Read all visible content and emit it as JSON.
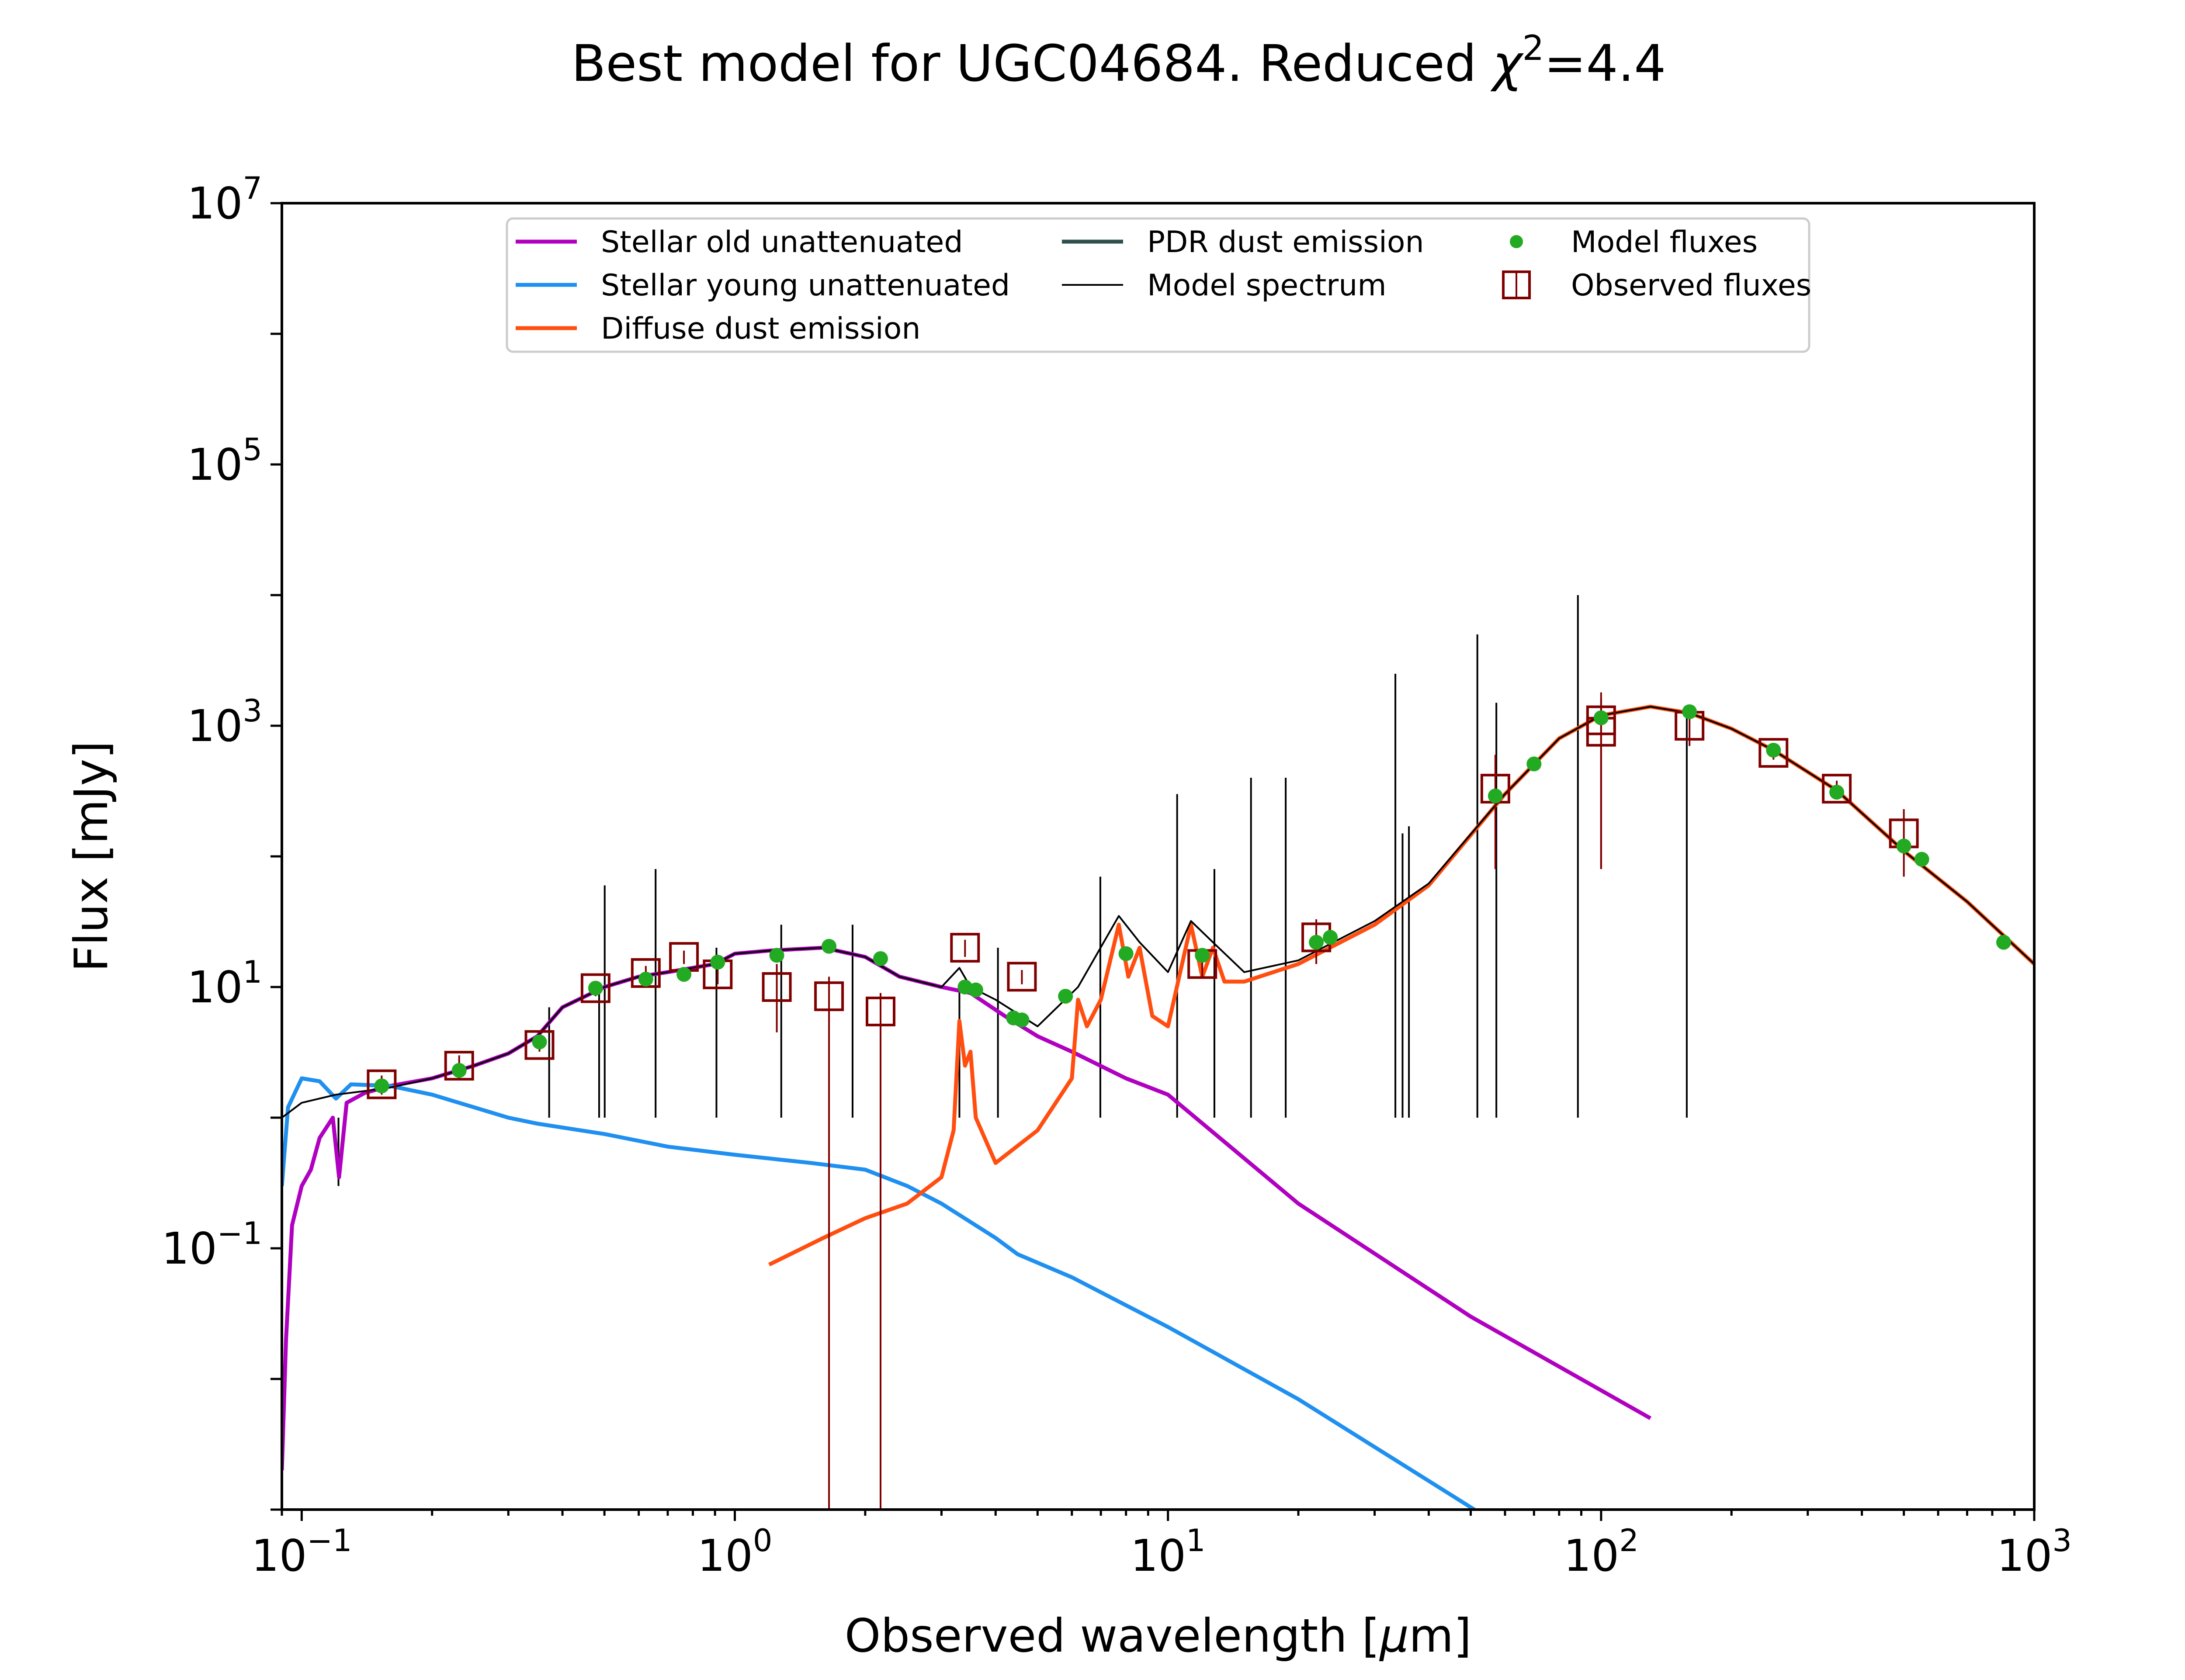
{
  "chart_data": {
    "type": "line",
    "title_main": "Best model for UGC04684. Reduced ",
    "title_chi": "χ",
    "title_sup": "2",
    "title_tail": "=4.4",
    "xlabel_main": "Observed wavelength [",
    "xlabel_mu": "μ",
    "xlabel_tail": "m]",
    "ylabel": "Flux [mJy]",
    "x_scale": "log",
    "y_scale": "log",
    "xlim": [
      0.09,
      1000
    ],
    "ylim": [
      0.001,
      10000000
    ],
    "grid": false,
    "legend_placement": "top-center",
    "x_ticks": [
      {
        "value": 0.1,
        "base": "10",
        "exp": "−1"
      },
      {
        "value": 1,
        "base": "10",
        "exp": "0"
      },
      {
        "value": 10,
        "base": "10",
        "exp": "1"
      },
      {
        "value": 100,
        "base": "10",
        "exp": "2"
      },
      {
        "value": 1000,
        "base": "10",
        "exp": "3"
      }
    ],
    "y_ticks": [
      {
        "value": 0.1,
        "base": "10",
        "exp": "−1"
      },
      {
        "value": 10,
        "base": "10",
        "exp": "1"
      },
      {
        "value": 1000,
        "base": "10",
        "exp": "3"
      },
      {
        "value": 100000,
        "base": "10",
        "exp": "5"
      },
      {
        "value": 10000000,
        "base": "10",
        "exp": "7"
      }
    ],
    "legend": [
      {
        "label": "Stellar old unattenuated",
        "kind": "line",
        "color": "#b000c0"
      },
      {
        "label": "Stellar young unattenuated",
        "kind": "line",
        "color": "#2090f0"
      },
      {
        "label": "Diffuse dust emission",
        "kind": "line",
        "color": "#ff4e10"
      },
      {
        "label": "PDR dust emission",
        "kind": "line",
        "color": "#2f4f4f"
      },
      {
        "label": "Model spectrum",
        "kind": "thin",
        "color": "#000000"
      },
      {
        "label": "Model fluxes",
        "kind": "dot",
        "color": "#22aa22"
      },
      {
        "label": "Observed fluxes",
        "kind": "square",
        "color": "#800000"
      }
    ],
    "series": [
      {
        "name": "Stellar old unattenuated",
        "color": "#b000c0",
        "points": [
          [
            0.09,
            0.002
          ],
          [
            0.092,
            0.02
          ],
          [
            0.095,
            0.15
          ],
          [
            0.1,
            0.3
          ],
          [
            0.105,
            0.4
          ],
          [
            0.11,
            0.7
          ],
          [
            0.118,
            1.0
          ],
          [
            0.122,
            0.35
          ],
          [
            0.127,
            1.3
          ],
          [
            0.14,
            1.55
          ],
          [
            0.16,
            1.75
          ],
          [
            0.2,
            2.0
          ],
          [
            0.25,
            2.5
          ],
          [
            0.3,
            3.1
          ],
          [
            0.35,
            4.2
          ],
          [
            0.4,
            7
          ],
          [
            0.5,
            10
          ],
          [
            0.6,
            12
          ],
          [
            0.7,
            13
          ],
          [
            0.9,
            15
          ],
          [
            1.0,
            18
          ],
          [
            1.2,
            19
          ],
          [
            1.6,
            20
          ],
          [
            2.0,
            17
          ],
          [
            2.4,
            12
          ],
          [
            3.0,
            10
          ],
          [
            3.5,
            9
          ],
          [
            4.2,
            6
          ],
          [
            5.0,
            4.2
          ],
          [
            6.0,
            3.2
          ],
          [
            8.0,
            2
          ],
          [
            10.0,
            1.5
          ],
          [
            20.0,
            0.22
          ],
          [
            50.0,
            0.03
          ],
          [
            130.0,
            0.005
          ]
        ]
      },
      {
        "name": "Stellar young unattenuated",
        "color": "#2090f0",
        "points": [
          [
            0.09,
            0.3
          ],
          [
            0.093,
            1.2
          ],
          [
            0.1,
            2.0
          ],
          [
            0.11,
            1.9
          ],
          [
            0.12,
            1.4
          ],
          [
            0.13,
            1.8
          ],
          [
            0.16,
            1.75
          ],
          [
            0.2,
            1.5
          ],
          [
            0.25,
            1.2
          ],
          [
            0.3,
            1.0
          ],
          [
            0.35,
            0.9
          ],
          [
            0.5,
            0.75
          ],
          [
            0.7,
            0.6
          ],
          [
            1.0,
            0.52
          ],
          [
            1.5,
            0.45
          ],
          [
            2.0,
            0.4
          ],
          [
            2.5,
            0.3
          ],
          [
            3.0,
            0.22
          ],
          [
            4.0,
            0.12
          ],
          [
            4.5,
            0.09
          ],
          [
            6.0,
            0.06
          ],
          [
            10.0,
            0.025
          ],
          [
            20.0,
            0.007
          ],
          [
            51.0,
            0.001
          ]
        ]
      },
      {
        "name": "Diffuse dust emission",
        "color": "#ff4e10",
        "points": [
          [
            1.2,
            0.075
          ],
          [
            1.6,
            0.12
          ],
          [
            2.0,
            0.17
          ],
          [
            2.5,
            0.22
          ],
          [
            3.0,
            0.35
          ],
          [
            3.2,
            0.8
          ],
          [
            3.3,
            5.5
          ],
          [
            3.4,
            2.5
          ],
          [
            3.5,
            3.2
          ],
          [
            3.6,
            1.0
          ],
          [
            4.0,
            0.45
          ],
          [
            5.0,
            0.8
          ],
          [
            6.0,
            2.0
          ],
          [
            6.2,
            8.0
          ],
          [
            6.5,
            5.0
          ],
          [
            7.0,
            8.0
          ],
          [
            7.7,
            30.0
          ],
          [
            8.1,
            12.0
          ],
          [
            8.6,
            20.0
          ],
          [
            9.2,
            6.0
          ],
          [
            10.0,
            5.0
          ],
          [
            11.3,
            30.0
          ],
          [
            12.0,
            12.0
          ],
          [
            12.7,
            20.0
          ],
          [
            13.5,
            11.0
          ],
          [
            15.0,
            11.0
          ],
          [
            20.0,
            15.0
          ],
          [
            30.0,
            30.0
          ],
          [
            40.0,
            60.0
          ],
          [
            60.0,
            300.0
          ],
          [
            80.0,
            800.0
          ],
          [
            100.0,
            1200.0
          ],
          [
            130.0,
            1400.0
          ],
          [
            160.0,
            1250.0
          ],
          [
            200.0,
            950.0
          ],
          [
            250.0,
            650.0
          ],
          [
            350.0,
            320.0
          ],
          [
            500.0,
            110.0
          ],
          [
            700.0,
            45.0
          ],
          [
            1000.0,
            15.0
          ]
        ]
      },
      {
        "name": "Model spectrum",
        "color": "#000000",
        "points": [
          [
            0.09,
            1.0
          ],
          [
            0.1,
            1.3
          ],
          [
            0.12,
            1.5
          ],
          [
            0.14,
            1.6
          ],
          [
            0.16,
            1.7
          ],
          [
            0.2,
            2.0
          ],
          [
            0.25,
            2.5
          ],
          [
            0.3,
            3.1
          ],
          [
            0.35,
            4.2
          ],
          [
            0.4,
            7
          ],
          [
            0.5,
            10
          ],
          [
            0.6,
            12
          ],
          [
            0.7,
            13
          ],
          [
            0.9,
            15
          ],
          [
            1.0,
            18
          ],
          [
            1.2,
            19
          ],
          [
            1.6,
            20
          ],
          [
            2.0,
            17
          ],
          [
            2.4,
            12
          ],
          [
            3.0,
            10
          ],
          [
            3.3,
            14
          ],
          [
            3.5,
            10
          ],
          [
            4.0,
            8.0
          ],
          [
            5.0,
            5.0
          ],
          [
            6.2,
            10.0
          ],
          [
            7.7,
            35.0
          ],
          [
            8.6,
            22.0
          ],
          [
            10.0,
            13.0
          ],
          [
            11.3,
            32.0
          ],
          [
            12.7,
            22.0
          ],
          [
            15.0,
            13.0
          ],
          [
            20.0,
            16.0
          ],
          [
            30.0,
            32.0
          ],
          [
            40.0,
            62.0
          ],
          [
            60.0,
            300.0
          ],
          [
            80.0,
            800.0
          ],
          [
            100.0,
            1200.0
          ],
          [
            130.0,
            1400.0
          ],
          [
            160.0,
            1250.0
          ],
          [
            200.0,
            950.0
          ],
          [
            250.0,
            650.0
          ],
          [
            350.0,
            320.0
          ],
          [
            500.0,
            110.0
          ],
          [
            700.0,
            45.0
          ],
          [
            1000.0,
            15.0
          ]
        ]
      }
    ],
    "emission_lines": [
      [
        0.1216,
        0.3
      ],
      [
        0.3727,
        7
      ],
      [
        0.4861,
        10
      ],
      [
        0.5007,
        60
      ],
      [
        0.6563,
        80
      ],
      [
        0.9069,
        20
      ],
      [
        1.28,
        30
      ],
      [
        1.87,
        30
      ],
      [
        3.3,
        10
      ],
      [
        4.05,
        20
      ],
      [
        6.98,
        70
      ],
      [
        10.5,
        300
      ],
      [
        12.8,
        80
      ],
      [
        15.55,
        400
      ],
      [
        18.7,
        400
      ],
      [
        33.5,
        2500
      ],
      [
        34.8,
        150
      ],
      [
        36.0,
        170
      ],
      [
        51.8,
        5000
      ],
      [
        57.3,
        1500
      ],
      [
        88.4,
        10000
      ],
      [
        157.7,
        1200
      ]
    ],
    "model_fluxes": [
      [
        0.153,
        1.75
      ],
      [
        0.231,
        2.3
      ],
      [
        0.354,
        3.8
      ],
      [
        0.477,
        9.8
      ],
      [
        0.623,
        11.5
      ],
      [
        0.763,
        12.5
      ],
      [
        0.913,
        15.5
      ],
      [
        1.25,
        17.5
      ],
      [
        1.65,
        20.5
      ],
      [
        2.17,
        16.5
      ],
      [
        3.4,
        10
      ],
      [
        3.6,
        9.5
      ],
      [
        4.4,
        5.8
      ],
      [
        4.6,
        5.6
      ],
      [
        5.8,
        8.5
      ],
      [
        8.0,
        18
      ],
      [
        12.0,
        17.5
      ],
      [
        22.0,
        22
      ],
      [
        23.7,
        24
      ],
      [
        57,
        290
      ],
      [
        70,
        510
      ],
      [
        100,
        1150
      ],
      [
        160,
        1280
      ],
      [
        250,
        650
      ],
      [
        350,
        310
      ],
      [
        500,
        120
      ],
      [
        550,
        95
      ],
      [
        850,
        22
      ]
    ],
    "observed_fluxes": [
      {
        "x": 0.153,
        "y": 1.8,
        "lo": 1.5,
        "hi": 2.1
      },
      {
        "x": 0.231,
        "y": 2.5,
        "lo": 2.0,
        "hi": 3.0
      },
      {
        "x": 0.354,
        "y": 3.6,
        "lo": 3.2,
        "hi": 4.0
      },
      {
        "x": 0.477,
        "y": 9.8,
        "lo": 8.5,
        "hi": 11.0
      },
      {
        "x": 0.623,
        "y": 12.8,
        "lo": 11.0,
        "hi": 14.5
      },
      {
        "x": 0.763,
        "y": 17,
        "lo": 15.0,
        "hi": 19.0
      },
      {
        "x": 0.913,
        "y": 12.5,
        "lo": 10.5,
        "hi": 14.5
      },
      {
        "x": 1.25,
        "y": 10,
        "lo": 4.5,
        "hi": 15.0
      },
      {
        "x": 1.65,
        "y": 8.5,
        "lo": 0.001,
        "hi": 12.0
      },
      {
        "x": 2.17,
        "y": 6.5,
        "lo": 0.001,
        "hi": 9.0
      },
      {
        "x": 3.4,
        "y": 20,
        "lo": 17.0,
        "hi": 23.0
      },
      {
        "x": 4.6,
        "y": 12,
        "lo": 10.5,
        "hi": 13.5
      },
      {
        "x": 12.0,
        "y": 15,
        "lo": 12.0,
        "hi": 18.0
      },
      {
        "x": 22.0,
        "y": 24,
        "lo": 15.0,
        "hi": 33.0
      },
      {
        "x": 57,
        "y": 330,
        "lo": 80,
        "hi": 600
      },
      {
        "x": 100,
        "y": 1100,
        "lo": 80,
        "hi": 1800
      },
      {
        "x": 100,
        "y": 900,
        "lo": 80,
        "hi": 1600
      },
      {
        "x": 160,
        "y": 1000,
        "lo": 700,
        "hi": 1300
      },
      {
        "x": 250,
        "y": 620,
        "lo": 550,
        "hi": 700
      },
      {
        "x": 350,
        "y": 330,
        "lo": 280,
        "hi": 380
      },
      {
        "x": 500,
        "y": 150,
        "lo": 70,
        "hi": 230
      }
    ]
  }
}
